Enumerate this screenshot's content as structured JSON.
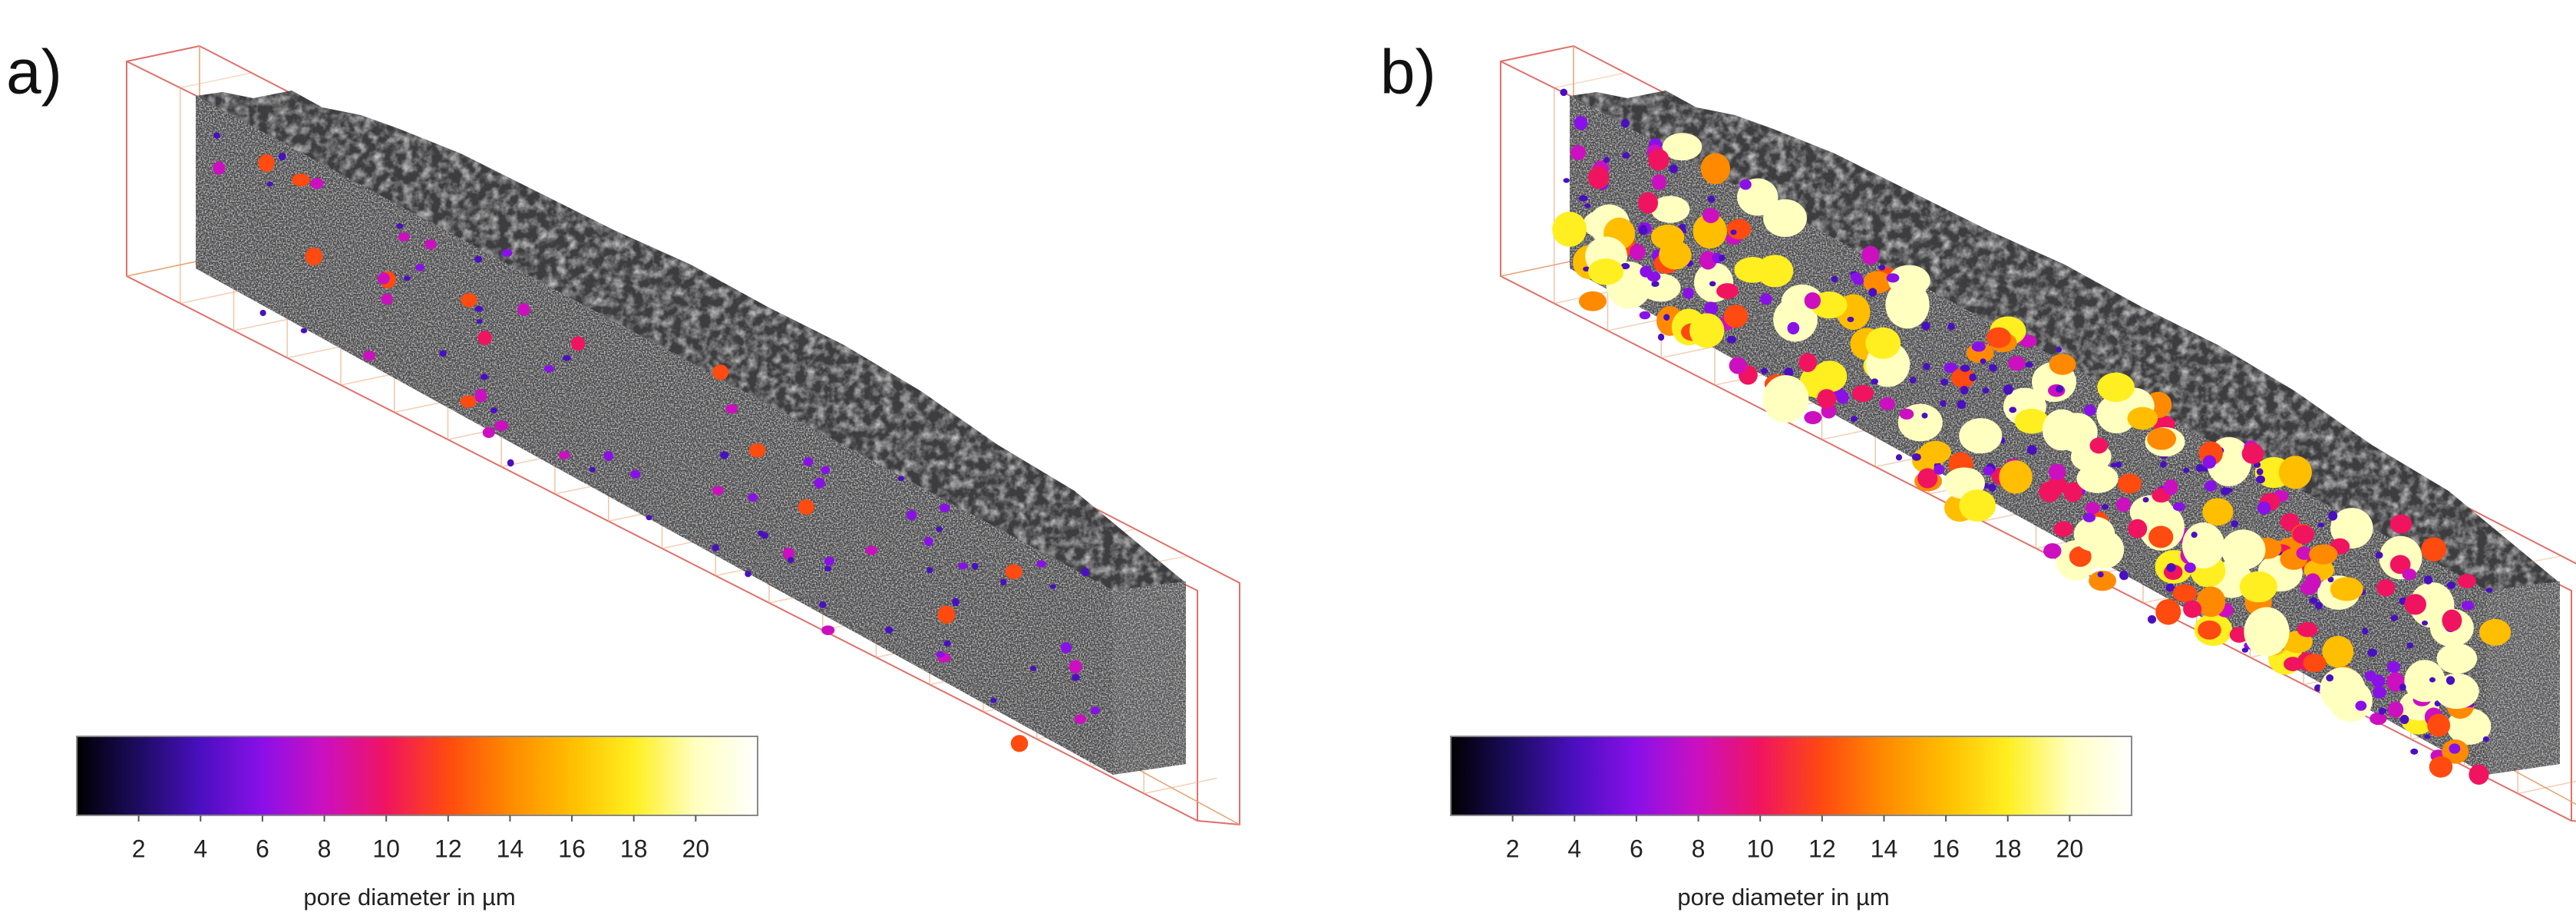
{
  "panels": [
    {
      "label": "a)",
      "colorbar": {
        "range": [
          0,
          22
        ],
        "ticks": [
          2,
          4,
          6,
          8,
          10,
          12,
          14,
          16,
          18,
          20
        ],
        "title": "pore diameter in µm",
        "colors": [
          "#000000",
          "#1c0c60",
          "#4a0fc0",
          "#8a10e8",
          "#cc10c0",
          "#f01460",
          "#ff4a10",
          "#ff8a00",
          "#ffbe00",
          "#ffef20",
          "#ffffc0",
          "#ffffff"
        ]
      }
    },
    {
      "label": "b)",
      "colorbar": {
        "range": [
          0,
          22
        ],
        "ticks": [
          2,
          4,
          6,
          8,
          10,
          12,
          14,
          16,
          18,
          20
        ],
        "title": "pore diameter in µm",
        "colors": [
          "#000000",
          "#1c0c60",
          "#4a0fc0",
          "#8a10e8",
          "#cc10c0",
          "#f01460",
          "#ff4a10",
          "#ff8a00",
          "#ffbe00",
          "#ffef20",
          "#ffffc0",
          "#ffffff"
        ]
      }
    }
  ]
}
